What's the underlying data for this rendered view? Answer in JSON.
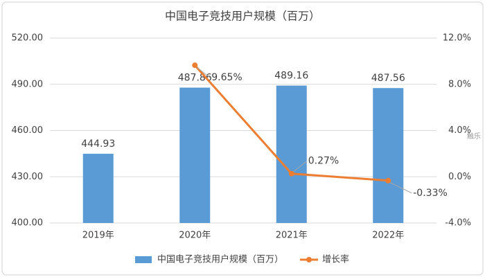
{
  "chart_data": {
    "type": "bar",
    "title": "中国电子竞技用户规模（百万）",
    "categories": [
      "2019年",
      "2020年",
      "2021年",
      "2022年"
    ],
    "series": [
      {
        "name": "中国电子竞技用户规模（百万）",
        "type": "bar",
        "color": "#5b9bd5",
        "values": [
          444.93,
          487.86,
          489.16,
          487.56
        ]
      },
      {
        "name": "增长率",
        "type": "line",
        "axis": "y2",
        "color": "#ed7d31",
        "values": [
          null,
          9.65,
          0.27,
          -0.33
        ],
        "value_labels": [
          null,
          "9.65%",
          "0.27%",
          "-0.33%"
        ]
      }
    ],
    "ylim": [
      400,
      520
    ],
    "yticks": [
      {
        "value": 400,
        "label": "400.00"
      },
      {
        "value": 430,
        "label": "430.00"
      },
      {
        "value": 460,
        "label": "460.00"
      },
      {
        "value": 490,
        "label": "490.00"
      },
      {
        "value": 520,
        "label": "520.00"
      }
    ],
    "y2lim": [
      -4,
      12
    ],
    "y2ticks": [
      {
        "value": -4,
        "label": "-4.0%"
      },
      {
        "value": 0,
        "label": "0.0%"
      },
      {
        "value": 4,
        "label": "4.0%"
      },
      {
        "value": 8,
        "label": "8.0%"
      },
      {
        "value": 12,
        "label": "12.0%"
      }
    ],
    "grid": true,
    "legend": "bottom",
    "watermark": "触乐"
  }
}
